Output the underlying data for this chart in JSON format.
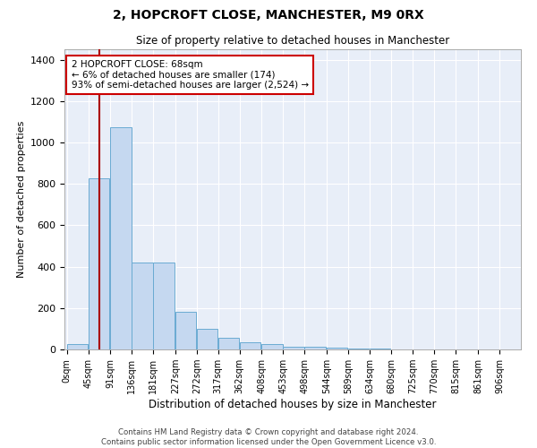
{
  "title_line1": "2, HOPCROFT CLOSE, MANCHESTER, M9 0RX",
  "title_line2": "Size of property relative to detached houses in Manchester",
  "xlabel": "Distribution of detached houses by size in Manchester",
  "ylabel": "Number of detached properties",
  "bar_color": "#c5d8f0",
  "bar_edge_color": "#6aabd2",
  "background_color": "#e8eef8",
  "grid_color": "#d0d8e8",
  "bin_labels": [
    "0sqm",
    "45sqm",
    "91sqm",
    "136sqm",
    "181sqm",
    "227sqm",
    "272sqm",
    "317sqm",
    "362sqm",
    "408sqm",
    "453sqm",
    "498sqm",
    "544sqm",
    "589sqm",
    "634sqm",
    "680sqm",
    "725sqm",
    "770sqm",
    "815sqm",
    "861sqm",
    "906sqm"
  ],
  "bin_edges": [
    0,
    45,
    91,
    136,
    181,
    227,
    272,
    317,
    362,
    408,
    453,
    498,
    544,
    589,
    634,
    680,
    725,
    770,
    815,
    861,
    906
  ],
  "bar_heights": [
    25,
    825,
    1075,
    420,
    420,
    180,
    100,
    55,
    35,
    25,
    15,
    15,
    10,
    5,
    3,
    2,
    1,
    1,
    0,
    0,
    0
  ],
  "ylim": [
    0,
    1450
  ],
  "yticks": [
    0,
    200,
    400,
    600,
    800,
    1000,
    1200,
    1400
  ],
  "property_size": 68,
  "annotation_line1": "2 HOPCROFT CLOSE: 68sqm",
  "annotation_line2": "← 6% of detached houses are smaller (174)",
  "annotation_line3": "93% of semi-detached houses are larger (2,524) →",
  "annotation_box_color": "#ffffff",
  "annotation_box_edge_color": "#cc0000",
  "red_line_color": "#aa0000",
  "footer_line1": "Contains HM Land Registry data © Crown copyright and database right 2024.",
  "footer_line2": "Contains public sector information licensed under the Open Government Licence v3.0."
}
